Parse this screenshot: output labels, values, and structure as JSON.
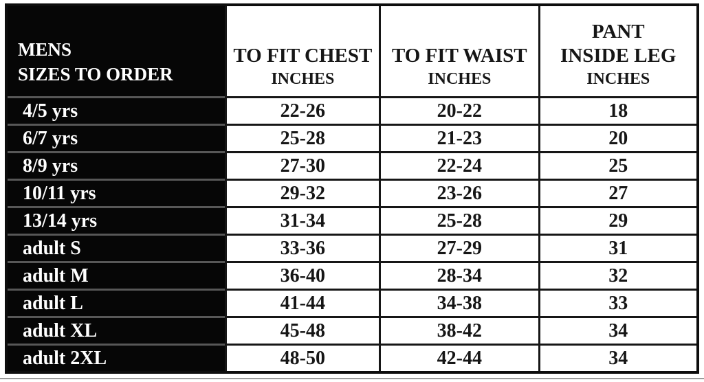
{
  "title": "Mens sizes to order chart",
  "colors": {
    "black": "#060606",
    "line": "#161616",
    "divider": "#575757",
    "paper": "#ffffff",
    "edge": "#9a9a9a"
  },
  "chart_data": {
    "type": "table",
    "corner_header": {
      "line1": "MENS",
      "line2": "SIZES TO ORDER"
    },
    "columns": [
      {
        "id": "chest",
        "lines": [
          "TO FIT CHEST",
          "INCHES"
        ]
      },
      {
        "id": "waist",
        "lines": [
          "TO FIT WAIST",
          "INCHES"
        ]
      },
      {
        "id": "pant",
        "lines": [
          "PANT",
          "INSIDE LEG",
          "INCHES"
        ]
      }
    ],
    "rows": [
      {
        "size": "4/5 yrs",
        "chest": "22-26",
        "waist": "20-22",
        "leg": "18"
      },
      {
        "size": "6/7 yrs",
        "chest": "25-28",
        "waist": "21-23",
        "leg": "20"
      },
      {
        "size": "8/9 yrs",
        "chest": "27-30",
        "waist": "22-24",
        "leg": "25"
      },
      {
        "size": "10/11 yrs",
        "chest": "29-32",
        "waist": "23-26",
        "leg": "27"
      },
      {
        "size": "13/14 yrs",
        "chest": "31-34",
        "waist": "25-28",
        "leg": "29"
      },
      {
        "size": "adult S",
        "chest": "33-36",
        "waist": "27-29",
        "leg": "31"
      },
      {
        "size": "adult M",
        "chest": "36-40",
        "waist": "28-34",
        "leg": "32"
      },
      {
        "size": "adult L",
        "chest": "41-44",
        "waist": "34-38",
        "leg": "33"
      },
      {
        "size": "adult XL",
        "chest": "45-48",
        "waist": "38-42",
        "leg": "34"
      },
      {
        "size": "adult 2XL",
        "chest": "48-50",
        "waist": "42-44",
        "leg": "34"
      }
    ]
  }
}
